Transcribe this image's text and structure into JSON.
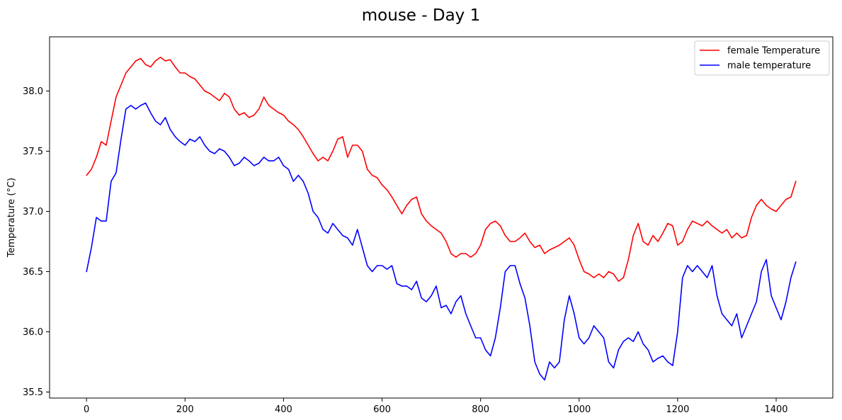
{
  "chart_data": {
    "type": "line",
    "title": "mouse - Day 1",
    "xlabel": "",
    "ylabel": "Temperature (°C)",
    "xlim": [
      -75,
      1515
    ],
    "ylim": [
      35.45,
      38.45
    ],
    "xticks": [
      0,
      200,
      400,
      600,
      800,
      1000,
      1200,
      1400
    ],
    "yticks": [
      35.5,
      36.0,
      36.5,
      37.0,
      37.5,
      38.0
    ],
    "ytick_labels": [
      "35.5",
      "36.0",
      "36.5",
      "37.0",
      "37.5",
      "38.0"
    ],
    "grid": false,
    "legend_position": "top-right",
    "series": [
      {
        "name": "female Temperature",
        "color": "#ff0000",
        "x": [
          0,
          10,
          20,
          30,
          40,
          50,
          60,
          70,
          80,
          90,
          100,
          110,
          120,
          130,
          140,
          150,
          160,
          170,
          180,
          190,
          200,
          210,
          220,
          230,
          240,
          250,
          260,
          270,
          280,
          290,
          300,
          310,
          320,
          330,
          340,
          350,
          360,
          370,
          380,
          390,
          400,
          410,
          420,
          430,
          440,
          450,
          460,
          470,
          480,
          490,
          500,
          510,
          520,
          530,
          540,
          550,
          560,
          570,
          580,
          590,
          600,
          610,
          620,
          630,
          640,
          650,
          660,
          670,
          680,
          690,
          700,
          710,
          720,
          730,
          740,
          750,
          760,
          770,
          780,
          790,
          800,
          810,
          820,
          830,
          840,
          850,
          860,
          870,
          880,
          890,
          900,
          910,
          920,
          930,
          940,
          950,
          960,
          970,
          980,
          990,
          1000,
          1010,
          1020,
          1030,
          1040,
          1050,
          1060,
          1070,
          1080,
          1090,
          1100,
          1110,
          1120,
          1130,
          1140,
          1150,
          1160,
          1170,
          1180,
          1190,
          1200,
          1210,
          1220,
          1230,
          1240,
          1250,
          1260,
          1270,
          1280,
          1290,
          1300,
          1310,
          1320,
          1330,
          1340,
          1350,
          1360,
          1370,
          1380,
          1390,
          1400,
          1410,
          1420,
          1430,
          1440
        ],
        "values": [
          37.3,
          37.35,
          37.45,
          37.58,
          37.55,
          37.75,
          37.95,
          38.05,
          38.15,
          38.2,
          38.25,
          38.27,
          38.22,
          38.2,
          38.25,
          38.28,
          38.25,
          38.26,
          38.2,
          38.15,
          38.15,
          38.12,
          38.1,
          38.05,
          38.0,
          37.98,
          37.95,
          37.92,
          37.98,
          37.95,
          37.85,
          37.8,
          37.82,
          37.78,
          37.8,
          37.85,
          37.95,
          37.88,
          37.85,
          37.82,
          37.8,
          37.75,
          37.72,
          37.68,
          37.62,
          37.55,
          37.48,
          37.42,
          37.45,
          37.42,
          37.5,
          37.6,
          37.62,
          37.45,
          37.55,
          37.55,
          37.5,
          37.35,
          37.3,
          37.28,
          37.22,
          37.18,
          37.12,
          37.05,
          36.98,
          37.05,
          37.1,
          37.12,
          36.98,
          36.92,
          36.88,
          36.85,
          36.82,
          36.75,
          36.65,
          36.62,
          36.65,
          36.65,
          36.62,
          36.65,
          36.72,
          36.85,
          36.9,
          36.92,
          36.88,
          36.8,
          36.75,
          36.75,
          36.78,
          36.82,
          36.75,
          36.7,
          36.72,
          36.65,
          36.68,
          36.7,
          36.72,
          36.75,
          36.78,
          36.72,
          36.6,
          36.5,
          36.48,
          36.45,
          36.48,
          36.45,
          36.5,
          36.48,
          36.42,
          36.45,
          36.6,
          36.8,
          36.9,
          36.75,
          36.72,
          36.8,
          36.75,
          36.82,
          36.9,
          36.88,
          36.72,
          36.75,
          36.85,
          36.92,
          36.9,
          36.88,
          36.92,
          36.88,
          36.85,
          36.82,
          36.85,
          36.78,
          36.82,
          36.78,
          36.8,
          36.95,
          37.05,
          37.1,
          37.05,
          37.02,
          37.0,
          37.05,
          37.1,
          37.12,
          37.25
        ]
      },
      {
        "name": "male temperature",
        "color": "#0000ff",
        "x": [
          0,
          10,
          20,
          30,
          40,
          50,
          60,
          70,
          80,
          90,
          100,
          110,
          120,
          130,
          140,
          150,
          160,
          170,
          180,
          190,
          200,
          210,
          220,
          230,
          240,
          250,
          260,
          270,
          280,
          290,
          300,
          310,
          320,
          330,
          340,
          350,
          360,
          370,
          380,
          390,
          400,
          410,
          420,
          430,
          440,
          450,
          460,
          470,
          480,
          490,
          500,
          510,
          520,
          530,
          540,
          550,
          560,
          570,
          580,
          590,
          600,
          610,
          620,
          630,
          640,
          650,
          660,
          670,
          680,
          690,
          700,
          710,
          720,
          730,
          740,
          750,
          760,
          770,
          780,
          790,
          800,
          810,
          820,
          830,
          840,
          850,
          860,
          870,
          880,
          890,
          900,
          910,
          920,
          930,
          940,
          950,
          960,
          970,
          980,
          990,
          1000,
          1010,
          1020,
          1030,
          1040,
          1050,
          1060,
          1070,
          1080,
          1090,
          1100,
          1110,
          1120,
          1130,
          1140,
          1150,
          1160,
          1170,
          1180,
          1190,
          1200,
          1210,
          1220,
          1230,
          1240,
          1250,
          1260,
          1270,
          1280,
          1290,
          1300,
          1310,
          1320,
          1330,
          1340,
          1350,
          1360,
          1370,
          1380,
          1390,
          1400,
          1410,
          1420,
          1430,
          1440
        ],
        "values": [
          36.5,
          36.7,
          36.95,
          36.92,
          36.92,
          37.25,
          37.32,
          37.6,
          37.85,
          37.88,
          37.85,
          37.88,
          37.9,
          37.82,
          37.75,
          37.72,
          37.78,
          37.68,
          37.62,
          37.58,
          37.55,
          37.6,
          37.58,
          37.62,
          37.55,
          37.5,
          37.48,
          37.52,
          37.5,
          37.45,
          37.38,
          37.4,
          37.45,
          37.42,
          37.38,
          37.4,
          37.45,
          37.42,
          37.42,
          37.45,
          37.38,
          37.35,
          37.25,
          37.3,
          37.25,
          37.15,
          37.0,
          36.95,
          36.85,
          36.82,
          36.9,
          36.85,
          36.8,
          36.78,
          36.72,
          36.85,
          36.7,
          36.55,
          36.5,
          36.55,
          36.55,
          36.52,
          36.55,
          36.4,
          36.38,
          36.38,
          36.35,
          36.42,
          36.28,
          36.25,
          36.3,
          36.38,
          36.2,
          36.22,
          36.15,
          36.25,
          36.3,
          36.15,
          36.05,
          35.95,
          35.95,
          35.85,
          35.8,
          35.95,
          36.2,
          36.5,
          36.55,
          36.55,
          36.4,
          36.28,
          36.05,
          35.75,
          35.65,
          35.6,
          35.75,
          35.7,
          35.75,
          36.1,
          36.3,
          36.15,
          35.95,
          35.9,
          35.95,
          36.05,
          36.0,
          35.95,
          35.75,
          35.7,
          35.85,
          35.92,
          35.95,
          35.92,
          36.0,
          35.9,
          35.85,
          35.75,
          35.78,
          35.8,
          35.75,
          35.72,
          36.0,
          36.45,
          36.55,
          36.5,
          36.55,
          36.5,
          36.45,
          36.55,
          36.3,
          36.15,
          36.1,
          36.05,
          36.15,
          35.95,
          36.05,
          36.15,
          36.25,
          36.5,
          36.6,
          36.3,
          36.2,
          36.1,
          36.25,
          36.45,
          36.58
        ]
      }
    ]
  }
}
